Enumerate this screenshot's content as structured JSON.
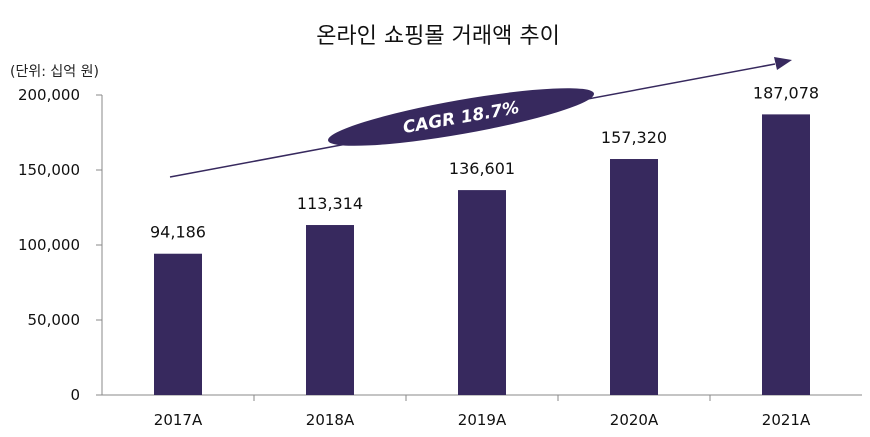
{
  "chart_data": {
    "type": "bar",
    "title": "온라인 쇼핑몰 거래액 추이",
    "unit_label": "(단위: 십억 원)",
    "categories": [
      "2017A",
      "2018A",
      "2019A",
      "2020A",
      "2021A"
    ],
    "values": [
      94186,
      113314,
      136601,
      157320,
      187078
    ],
    "data_labels": [
      "94,186",
      "113,314",
      "136,601",
      "157,320",
      "187,078"
    ],
    "yticks": [
      "0",
      "50,000",
      "100,000",
      "150,000",
      "200,000"
    ],
    "ylim": [
      0,
      200000
    ],
    "grid": false,
    "legend": "none",
    "annotation": "CAGR 18.7%",
    "colors": {
      "bar": "#37295e",
      "axis": "#888888",
      "arrow": "#37295e"
    }
  }
}
